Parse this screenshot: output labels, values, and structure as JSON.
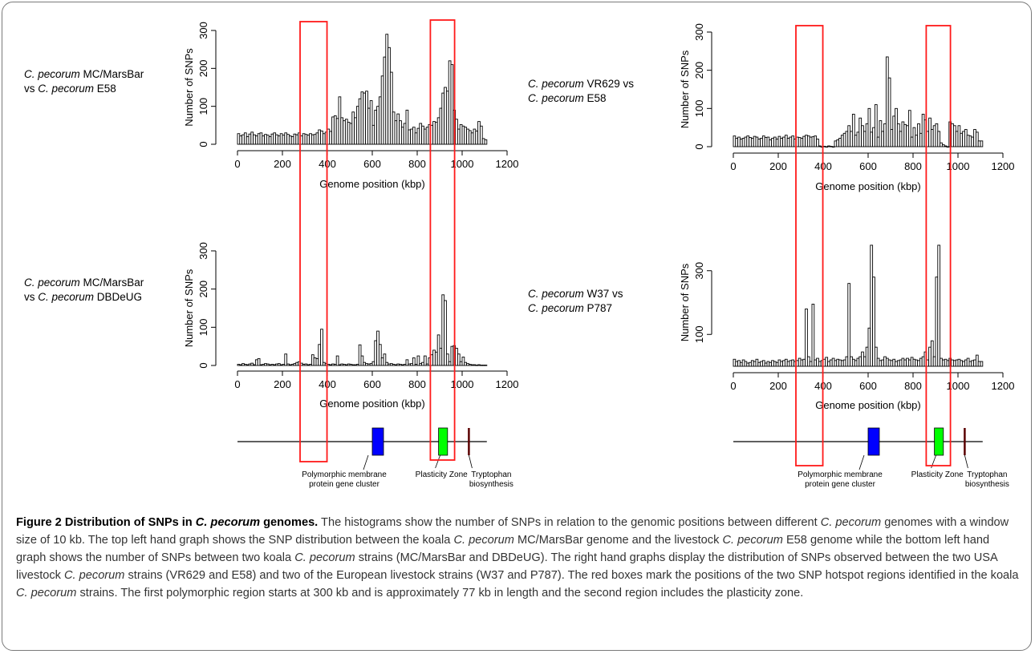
{
  "colors": {
    "bar_edge": "#000000",
    "hotspot_box": "#ff1a1a",
    "pmp_cluster": "#0000ff",
    "plasticity_zone": "#00ff00",
    "tryptophan": "#5a0000"
  },
  "panel_labels": [
    {
      "italic1": "C. pecorum",
      "rest1": " MC/MarsBar",
      "pre2": "vs ",
      "italic2": "C. pecorum",
      "rest2": " E58"
    },
    {
      "italic1": "C. pecorum",
      "rest1": " MC/MarsBar",
      "pre2": "vs ",
      "italic2": "C. pecorum",
      "rest2": " DBDeUG"
    },
    {
      "italic1": "C. pecorum",
      "rest1": " VR629 vs",
      "pre2": "",
      "italic2": "C. pecorum",
      "rest2": " E58"
    },
    {
      "italic1": "C. pecorum",
      "rest1": " W37 vs",
      "pre2": "",
      "italic2": "C. pecorum",
      "rest2": " P787"
    }
  ],
  "chart_data": [
    {
      "type": "bar",
      "name": "MC/MarsBar vs E58",
      "xlabel": "Genome position (kbp)",
      "ylabel": "Number of SNPs",
      "xlim": [
        0,
        1200
      ],
      "xticks": [
        0,
        200,
        400,
        600,
        800,
        1000,
        1200
      ],
      "yticks": [
        0,
        100,
        200,
        300
      ],
      "ylim": [
        0,
        300
      ],
      "bin_kb": 10,
      "values": [
        28,
        22,
        25,
        30,
        20,
        27,
        32,
        25,
        22,
        28,
        30,
        22,
        26,
        24,
        20,
        27,
        30,
        25,
        22,
        28,
        24,
        30,
        26,
        22,
        20,
        27,
        25,
        30,
        22,
        28,
        26,
        24,
        28,
        25,
        26,
        30,
        38,
        35,
        28,
        32,
        40,
        34,
        72,
        75,
        68,
        125,
        70,
        62,
        66,
        58,
        55,
        85,
        70,
        100,
        120,
        138,
        135,
        140,
        95,
        115,
        50,
        90,
        100,
        125,
        180,
        230,
        290,
        255,
        190,
        85,
        62,
        80,
        62,
        45,
        55,
        90,
        38,
        40,
        45,
        30,
        42,
        55,
        48,
        40,
        45,
        52,
        50,
        60,
        58,
        70,
        95,
        135,
        150,
        140,
        220,
        210,
        90,
        66,
        40,
        52,
        48,
        45,
        40,
        36,
        30,
        40,
        35,
        60,
        48,
        15,
        12
      ]
    },
    {
      "type": "bar",
      "name": "MC/MarsBar vs DBDeUG",
      "xlabel": "Genome position (kbp)",
      "ylabel": "Number of SNPs",
      "xlim": [
        0,
        1200
      ],
      "xticks": [
        0,
        200,
        400,
        600,
        800,
        1000,
        1200
      ],
      "yticks": [
        0,
        100,
        200,
        300
      ],
      "ylim": [
        0,
        300
      ],
      "bin_kb": 10,
      "values": [
        3,
        2,
        5,
        3,
        2,
        4,
        6,
        2,
        15,
        18,
        2,
        3,
        5,
        4,
        2,
        3,
        2,
        4,
        5,
        2,
        3,
        30,
        4,
        2,
        3,
        5,
        8,
        10,
        6,
        3,
        4,
        2,
        3,
        28,
        20,
        18,
        55,
        95,
        8,
        5,
        3,
        2,
        4,
        3,
        25,
        2,
        4,
        3,
        2,
        4,
        3,
        2,
        2,
        3,
        54,
        25,
        8,
        5,
        4,
        5,
        10,
        65,
        90,
        55,
        20,
        30,
        8,
        4,
        5,
        3,
        2,
        4,
        3,
        2,
        3,
        15,
        4,
        5,
        20,
        3,
        25,
        5,
        8,
        25,
        4,
        20,
        28,
        40,
        35,
        80,
        45,
        185,
        170,
        30,
        10,
        50,
        52,
        45,
        30,
        10,
        22,
        8,
        5,
        3,
        2,
        2,
        1,
        2,
        1,
        1,
        1
      ]
    },
    {
      "type": "bar",
      "name": "VR629 vs E58",
      "xlabel": "Genome position (kbp)",
      "ylabel": "Number of SNPs",
      "xlim": [
        0,
        1200
      ],
      "xticks": [
        0,
        200,
        400,
        600,
        800,
        1000,
        1200
      ],
      "yticks": [
        0,
        100,
        200,
        300
      ],
      "ylim": [
        0,
        300
      ],
      "bin_kb": 10,
      "values": [
        28,
        22,
        25,
        20,
        22,
        25,
        28,
        24,
        22,
        27,
        25,
        20,
        22,
        28,
        24,
        25,
        18,
        22,
        25,
        20,
        27,
        22,
        25,
        30,
        22,
        25,
        28,
        20,
        25,
        24,
        22,
        27,
        30,
        28,
        25,
        26,
        28,
        20,
        2,
        0,
        1,
        0,
        2,
        1,
        0,
        15,
        18,
        22,
        30,
        35,
        40,
        55,
        40,
        85,
        30,
        38,
        75,
        55,
        40,
        60,
        100,
        38,
        50,
        110,
        25,
        68,
        40,
        60,
        235,
        180,
        45,
        80,
        100,
        60,
        40,
        65,
        58,
        55,
        95,
        25,
        50,
        30,
        60,
        35,
        85,
        70,
        40,
        75,
        45,
        55,
        60,
        40,
        10,
        5,
        2,
        0,
        65,
        60,
        55,
        40,
        55,
        35,
        40,
        45,
        30,
        28,
        25,
        45,
        38,
        15,
        15
      ]
    },
    {
      "type": "bar",
      "name": "W37 vs P787",
      "xlabel": "Genome position (kbp)",
      "ylabel": "Number of SNPs",
      "xlim": [
        0,
        1200
      ],
      "xticks": [
        0,
        200,
        400,
        600,
        800,
        1000,
        1200
      ],
      "yticks": [
        100,
        300
      ],
      "ylim": [
        0,
        400
      ],
      "bin_kb": 10,
      "values": [
        22,
        15,
        18,
        12,
        20,
        15,
        10,
        12,
        18,
        15,
        22,
        12,
        15,
        18,
        10,
        15,
        12,
        18,
        15,
        12,
        20,
        15,
        18,
        22,
        15,
        18,
        20,
        15,
        18,
        25,
        20,
        22,
        180,
        30,
        15,
        195,
        20,
        25,
        15,
        18,
        22,
        28,
        15,
        20,
        25,
        18,
        22,
        20,
        18,
        20,
        30,
        260,
        30,
        22,
        18,
        25,
        30,
        45,
        30,
        60,
        120,
        380,
        280,
        60,
        25,
        18,
        20,
        30,
        25,
        20,
        18,
        22,
        15,
        18,
        20,
        25,
        20,
        25,
        20,
        28,
        22,
        20,
        18,
        25,
        30,
        45,
        20,
        60,
        80,
        30,
        280,
        380,
        25,
        20,
        22,
        18,
        25,
        20,
        18,
        20,
        22,
        18,
        15,
        20,
        25,
        15,
        18,
        20,
        35,
        15,
        15
      ]
    }
  ],
  "hotspot_boxes_kb": [
    [
      300,
      377
    ],
    [
      880,
      945
    ]
  ],
  "annotations": {
    "pmp_line1": "Polymorphic membrane",
    "pmp_line2": "protein gene cluster",
    "pz": "Plasticity Zone",
    "trp_line1": "Tryptophan",
    "trp_line2": "biosynthesis"
  },
  "genome_map": {
    "genome_end_kb": 1110,
    "pmp_kb": [
      600,
      650
    ],
    "pz_kb": [
      895,
      935
    ],
    "trp_kb": 1030
  },
  "caption": {
    "title_a": "Figure 2 Distribution of SNPs in ",
    "title_italic": "C. pecorum",
    "title_b": " genomes.",
    "t1": " The histograms show the number of SNPs in relation to the genomic positions between different ",
    "i1": "C. pecorum",
    "t2": " genomes with a window size of 10 kb. The top left hand graph shows the SNP distribution between the koala ",
    "i2": "C. pecorum",
    "t3": " MC/MarsBar genome and the livestock ",
    "i3": "C. pecorum",
    "t4": " E58 genome while the bottom left hand graph shows the number of SNPs between two koala ",
    "i4": "C. pecorum",
    "t5": " strains (MC/MarsBar and DBDeUG). The right hand graphs display the distribution of SNPs observed between the two USA livestock ",
    "i5": "C. pecorum",
    "t6": " strains (VR629 and E58) and two of the European livestock strains (W37 and P787). The red boxes mark the positions of the two SNP hotspot regions identified in the koala ",
    "i6": "C. pecorum",
    "t7": " strains. The first polymorphic region starts at 300 kb and is approximately 77 kb in length and the second region includes the plasticity zone."
  }
}
